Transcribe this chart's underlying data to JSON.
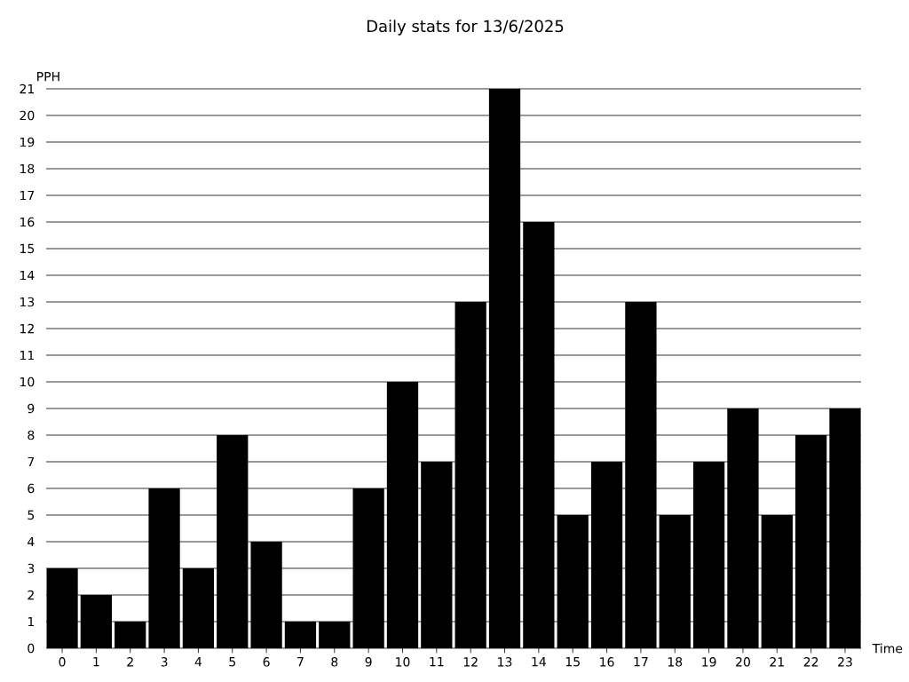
{
  "chart_data": {
    "type": "bar",
    "title": "Daily stats for 13/6/2025",
    "xlabel": "Time",
    "ylabel": "PPH",
    "categories": [
      "0",
      "1",
      "2",
      "3",
      "4",
      "5",
      "6",
      "7",
      "8",
      "9",
      "10",
      "11",
      "12",
      "13",
      "14",
      "15",
      "16",
      "17",
      "18",
      "19",
      "20",
      "21",
      "22",
      "23"
    ],
    "values": [
      3,
      2,
      1,
      6,
      3,
      8,
      4,
      1,
      1,
      6,
      10,
      7,
      13,
      21,
      16,
      5,
      7,
      13,
      5,
      7,
      9,
      5,
      8,
      9
    ],
    "color": "#000000",
    "ylim": [
      0,
      21
    ],
    "yticks": [
      0,
      1,
      2,
      3,
      4,
      5,
      6,
      7,
      8,
      9,
      10,
      11,
      12,
      13,
      14,
      15,
      16,
      17,
      18,
      19,
      20,
      21
    ],
    "grid": "y"
  }
}
